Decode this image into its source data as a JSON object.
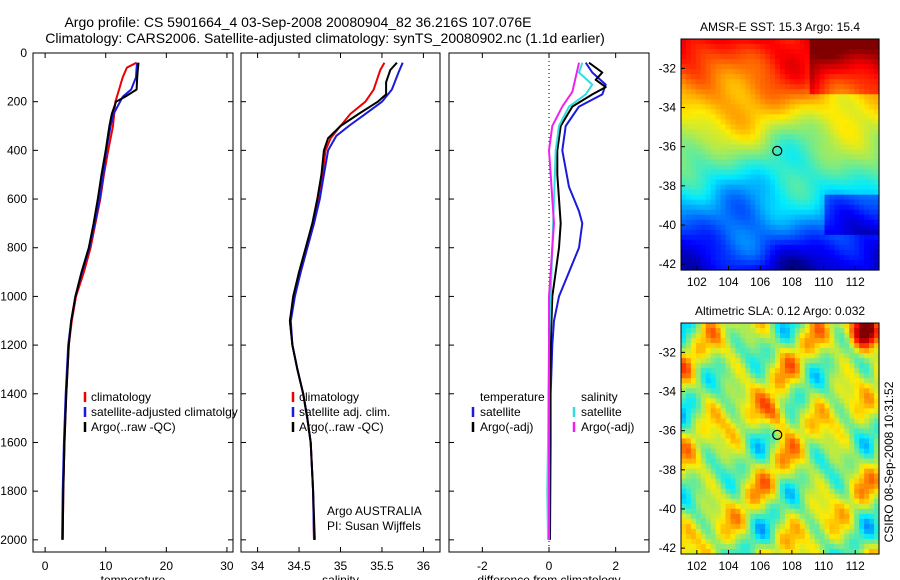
{
  "header": {
    "line1": "Argo profile: CS 5901664_4 03-Sep-2008 20080904_82 36.216S 107.076E",
    "line2": "Climatology: CARS2006. Satellite-adjusted climatology: synTS_20080902.nc (1.1d earlier)"
  },
  "credit": "CSIRO 08-Sep-2008 10:31:52",
  "colors": {
    "climatology": "#ee0000",
    "satellite": "#1a1adc",
    "argo": "#000000",
    "salinity_satellite": "#33dddd",
    "salinity_argo": "#ee22ee"
  },
  "chart_data": [
    {
      "type": "line",
      "xlabel": "temperature",
      "xlim": [
        -2,
        31
      ],
      "xticks": [
        0,
        10,
        20,
        30
      ],
      "ylim": [
        0,
        2050
      ],
      "yticks": [
        0,
        200,
        400,
        600,
        800,
        1000,
        1200,
        1400,
        1600,
        1800,
        2000
      ],
      "y_reversed": true,
      "legend": {
        "position": "lower-right",
        "entries": [
          "climatology",
          "satellite-adjusted climatolgy",
          "Argo(..raw -QC)"
        ]
      },
      "series": [
        {
          "name": "climatology",
          "color": "#ee0000",
          "points": [
            [
              15.1,
              40
            ],
            [
              13.5,
              60
            ],
            [
              12.8,
              100
            ],
            [
              12.2,
              150
            ],
            [
              11.6,
              200
            ],
            [
              11.2,
              300
            ],
            [
              10.4,
              400
            ],
            [
              9.7,
              500
            ],
            [
              9.1,
              600
            ],
            [
              8.3,
              700
            ],
            [
              7.5,
              800
            ],
            [
              6.4,
              900
            ],
            [
              5.1,
              1000
            ],
            [
              4.4,
              1100
            ],
            [
              3.9,
              1200
            ],
            [
              3.5,
              1400
            ],
            [
              3.2,
              1600
            ],
            [
              3.0,
              1800
            ],
            [
              2.9,
              2000
            ]
          ]
        },
        {
          "name": "satellite-adjusted climatolgy",
          "color": "#1a1adc",
          "points": [
            [
              15.2,
              40
            ],
            [
              15.1,
              60
            ],
            [
              15.0,
              100
            ],
            [
              14.2,
              150
            ],
            [
              12.8,
              180
            ],
            [
              11.3,
              250
            ],
            [
              10.8,
              300
            ],
            [
              10.1,
              400
            ],
            [
              9.6,
              500
            ],
            [
              9.0,
              600
            ],
            [
              8.2,
              700
            ],
            [
              7.3,
              800
            ],
            [
              6.1,
              900
            ],
            [
              5.0,
              1000
            ],
            [
              4.3,
              1100
            ],
            [
              3.8,
              1200
            ],
            [
              3.4,
              1400
            ],
            [
              3.1,
              1600
            ],
            [
              2.9,
              1800
            ],
            [
              2.8,
              2000
            ]
          ]
        },
        {
          "name": "Argo(..raw -QC)",
          "color": "#000000",
          "points": [
            [
              15.4,
              40
            ],
            [
              15.3,
              70
            ],
            [
              15.2,
              100
            ],
            [
              15.1,
              150
            ],
            [
              13.2,
              180
            ],
            [
              11.7,
              200
            ],
            [
              11.0,
              250
            ],
            [
              10.6,
              300
            ],
            [
              10.0,
              400
            ],
            [
              9.3,
              500
            ],
            [
              8.7,
              600
            ],
            [
              8.0,
              700
            ],
            [
              7.2,
              800
            ],
            [
              6.0,
              900
            ],
            [
              5.0,
              1000
            ],
            [
              4.3,
              1100
            ],
            [
              3.9,
              1200
            ],
            [
              3.5,
              1400
            ],
            [
              3.2,
              1600
            ],
            [
              3.0,
              1800
            ],
            [
              2.9,
              2000
            ]
          ]
        }
      ]
    },
    {
      "type": "line",
      "xlabel": "salinity",
      "xlim": [
        33.8,
        36.2
      ],
      "xticks": [
        34,
        34.5,
        35,
        35.5,
        36
      ],
      "ylim": [
        0,
        2050
      ],
      "y_reversed": true,
      "legend": {
        "position": "lower-right",
        "entries": [
          "climatology",
          "satellite adj. clim.",
          "Argo(..raw -QC)"
        ]
      },
      "annotation": [
        "Argo AUSTRALIA",
        "PI: Susan Wijffels"
      ],
      "series": [
        {
          "name": "climatology",
          "color": "#ee0000",
          "points": [
            [
              35.53,
              40
            ],
            [
              35.48,
              70
            ],
            [
              35.45,
              100
            ],
            [
              35.4,
              150
            ],
            [
              35.3,
              200
            ],
            [
              35.12,
              250
            ],
            [
              35.0,
              300
            ],
            [
              34.88,
              350
            ],
            [
              34.82,
              400
            ],
            [
              34.78,
              500
            ],
            [
              34.74,
              600
            ],
            [
              34.68,
              700
            ],
            [
              34.6,
              800
            ],
            [
              34.52,
              900
            ],
            [
              34.44,
              1000
            ],
            [
              34.39,
              1100
            ],
            [
              34.42,
              1200
            ],
            [
              34.48,
              1300
            ],
            [
              34.55,
              1400
            ],
            [
              34.6,
              1500
            ],
            [
              34.64,
              1600
            ],
            [
              34.67,
              1800
            ],
            [
              34.68,
              2000
            ]
          ]
        },
        {
          "name": "satellite adj. clim.",
          "color": "#1a1adc",
          "points": [
            [
              35.75,
              40
            ],
            [
              35.7,
              80
            ],
            [
              35.62,
              150
            ],
            [
              35.5,
              200
            ],
            [
              35.3,
              250
            ],
            [
              35.1,
              300
            ],
            [
              34.95,
              340
            ],
            [
              34.85,
              400
            ],
            [
              34.8,
              500
            ],
            [
              34.75,
              600
            ],
            [
              34.68,
              700
            ],
            [
              34.6,
              800
            ],
            [
              34.52,
              900
            ],
            [
              34.45,
              1000
            ],
            [
              34.4,
              1100
            ],
            [
              34.42,
              1200
            ],
            [
              34.48,
              1300
            ],
            [
              34.55,
              1400
            ],
            [
              34.6,
              1500
            ],
            [
              34.64,
              1600
            ],
            [
              34.67,
              1800
            ],
            [
              34.68,
              2000
            ]
          ]
        },
        {
          "name": "Argo(..raw -QC)",
          "color": "#000000",
          "points": [
            [
              35.68,
              40
            ],
            [
              35.6,
              70
            ],
            [
              35.55,
              120
            ],
            [
              35.55,
              170
            ],
            [
              35.45,
              200
            ],
            [
              35.22,
              250
            ],
            [
              35.0,
              300
            ],
            [
              34.85,
              350
            ],
            [
              34.8,
              400
            ],
            [
              34.77,
              500
            ],
            [
              34.72,
              600
            ],
            [
              34.66,
              700
            ],
            [
              34.58,
              800
            ],
            [
              34.5,
              900
            ],
            [
              34.43,
              1000
            ],
            [
              34.39,
              1100
            ],
            [
              34.42,
              1200
            ],
            [
              34.48,
              1300
            ],
            [
              34.55,
              1400
            ],
            [
              34.6,
              1500
            ],
            [
              34.64,
              1600
            ],
            [
              34.67,
              1800
            ],
            [
              34.69,
              2000
            ]
          ]
        }
      ]
    },
    {
      "type": "line",
      "xlabel": "difference from climatology",
      "xlim": [
        -3,
        3
      ],
      "xticks": [
        -2,
        0,
        2
      ],
      "ylim": [
        0,
        2050
      ],
      "y_reversed": true,
      "zero_line": "dotted",
      "legend": {
        "position": "lower-right",
        "columns": [
          {
            "heading": "temperature",
            "entries": [
              "satellite",
              "Argo(-adj)"
            ]
          },
          {
            "heading": "salinity",
            "entries": [
              "satellite",
              "Argo(-adj)"
            ]
          }
        ]
      },
      "series": [
        {
          "name": "temperature satellite",
          "color": "#1a1adc",
          "points": [
            [
              1.1,
              40
            ],
            [
              1.3,
              80
            ],
            [
              1.7,
              130
            ],
            [
              1.6,
              170
            ],
            [
              0.9,
              220
            ],
            [
              0.5,
              300
            ],
            [
              0.4,
              400
            ],
            [
              0.6,
              550
            ],
            [
              0.9,
              650
            ],
            [
              1.0,
              700
            ],
            [
              0.9,
              800
            ],
            [
              0.6,
              900
            ],
            [
              0.3,
              1000
            ],
            [
              0.15,
              1100
            ],
            [
              0.1,
              1200
            ],
            [
              0.05,
              1400
            ],
            [
              0.05,
              1600
            ],
            [
              0.03,
              2000
            ]
          ]
        },
        {
          "name": "temperature Argo(-adj)",
          "color": "#000000",
          "points": [
            [
              1.2,
              40
            ],
            [
              1.6,
              80
            ],
            [
              1.4,
              110
            ],
            [
              1.7,
              140
            ],
            [
              1.3,
              170
            ],
            [
              0.7,
              220
            ],
            [
              0.35,
              300
            ],
            [
              0.25,
              400
            ],
            [
              0.25,
              500
            ],
            [
              0.3,
              600
            ],
            [
              0.35,
              700
            ],
            [
              0.3,
              800
            ],
            [
              0.2,
              900
            ],
            [
              0.1,
              1000
            ],
            [
              0.05,
              1200
            ],
            [
              0.03,
              1400
            ],
            [
              0.02,
              1600
            ],
            [
              0.02,
              2000
            ]
          ]
        },
        {
          "name": "salinity satellite",
          "color": "#33dddd",
          "points": [
            [
              1.0,
              40
            ],
            [
              0.9,
              80
            ],
            [
              1.3,
              130
            ],
            [
              1.1,
              170
            ],
            [
              0.6,
              220
            ],
            [
              0.3,
              300
            ],
            [
              0.2,
              400
            ],
            [
              0.15,
              600
            ],
            [
              0.1,
              800
            ],
            [
              0.05,
              1000
            ],
            [
              0.0,
              1200
            ],
            [
              -0.02,
              1400
            ],
            [
              -0.03,
              1600
            ],
            [
              -0.05,
              1800
            ],
            [
              -0.03,
              2000
            ]
          ]
        },
        {
          "name": "salinity Argo(-adj)",
          "color": "#ee22ee",
          "points": [
            [
              0.9,
              40
            ],
            [
              0.8,
              100
            ],
            [
              0.7,
              160
            ],
            [
              0.4,
              220
            ],
            [
              0.1,
              300
            ],
            [
              0.0,
              400
            ],
            [
              0.05,
              500
            ],
            [
              0.1,
              600
            ],
            [
              0.15,
              700
            ],
            [
              0.1,
              800
            ],
            [
              0.05,
              900
            ],
            [
              0.0,
              1000
            ],
            [
              0.0,
              1200
            ],
            [
              0.0,
              1400
            ],
            [
              0.0,
              1600
            ],
            [
              0.0,
              2000
            ]
          ]
        }
      ]
    },
    {
      "type": "heatmap",
      "title": "AMSR-E SST: 15.3 Argo: 15.4",
      "xlim": [
        101,
        113.5
      ],
      "xticks": [
        102,
        104,
        106,
        108,
        110,
        112
      ],
      "ylim": [
        -42.3,
        -30.5
      ],
      "yticks": [
        -32,
        -34,
        -36,
        -38,
        -40,
        -42
      ],
      "marker": {
        "x": 107.076,
        "y": -36.216
      }
    },
    {
      "type": "heatmap",
      "title": "Altimetric SLA: 0.12 Argo: 0.032",
      "xlim": [
        101,
        113.5
      ],
      "xticks": [
        102,
        104,
        106,
        108,
        110,
        112
      ],
      "ylim": [
        -42.3,
        -30.5
      ],
      "yticks": [
        -32,
        -34,
        -36,
        -38,
        -40,
        -42
      ],
      "marker": {
        "x": 107.076,
        "y": -36.216
      }
    }
  ]
}
